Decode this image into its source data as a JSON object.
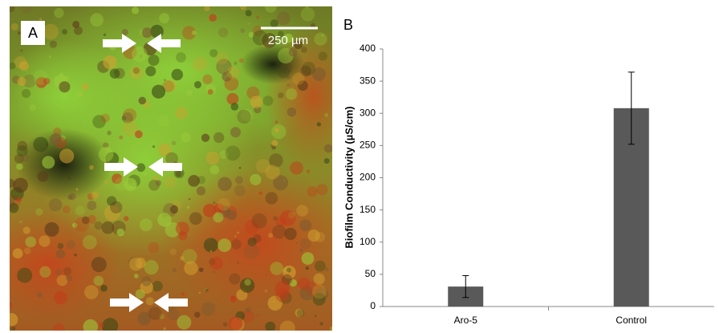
{
  "panels": {
    "a_label": "A",
    "scale_bar": "250 µm",
    "b_label": "B"
  },
  "chart_data": {
    "type": "bar",
    "categories": [
      "Aro-5",
      "Control"
    ],
    "values": [
      31,
      308
    ],
    "errors": [
      17,
      56
    ],
    "color": "#595959",
    "y_label": "Biofilm Conductivity (µS/cm)",
    "ylim": [
      0,
      400
    ],
    "yticks": [
      0,
      50,
      100,
      150,
      200,
      250,
      300,
      350,
      400
    ]
  }
}
